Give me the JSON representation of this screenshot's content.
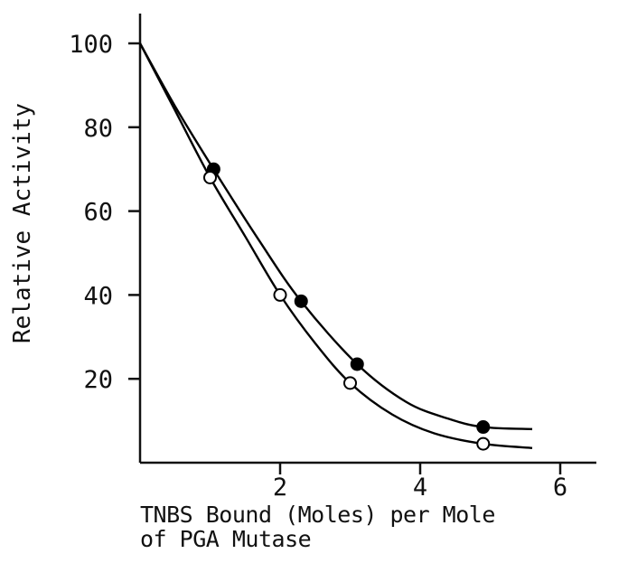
{
  "chart_data": {
    "type": "scatter",
    "xlabel_lines": [
      "TNBS Bound (Moles) per Mole",
      "of PGA Mutase"
    ],
    "ylabel": "Relative Activity",
    "xlim": [
      0,
      6.5
    ],
    "ylim": [
      0,
      105
    ],
    "xticks": [
      2,
      4,
      6
    ],
    "yticks": [
      20,
      40,
      60,
      80,
      100
    ],
    "grid": false,
    "legend": "none",
    "series": [
      {
        "marker": "filled-circle",
        "color": "#000000",
        "points": [
          [
            0,
            100
          ],
          [
            1.05,
            70
          ],
          [
            2.3,
            38.5
          ],
          [
            3.1,
            23.5
          ],
          [
            4.9,
            8.5
          ]
        ],
        "curve": [
          [
            0,
            100
          ],
          [
            0.5,
            85
          ],
          [
            1.05,
            70
          ],
          [
            1.7,
            53
          ],
          [
            2.3,
            38.5
          ],
          [
            3.1,
            23.5
          ],
          [
            3.8,
            14.5
          ],
          [
            4.4,
            10.5
          ],
          [
            4.9,
            8.5
          ],
          [
            5.6,
            8
          ]
        ]
      },
      {
        "marker": "open-circle",
        "color": "#000000",
        "points": [
          [
            0,
            100
          ],
          [
            1.0,
            68
          ],
          [
            2.0,
            40
          ],
          [
            3.0,
            19
          ],
          [
            4.9,
            4.5
          ]
        ],
        "curve": [
          [
            0,
            100
          ],
          [
            0.5,
            84
          ],
          [
            1.0,
            68
          ],
          [
            1.5,
            54
          ],
          [
            2.0,
            40
          ],
          [
            2.5,
            28.5
          ],
          [
            3.0,
            19
          ],
          [
            3.6,
            11.5
          ],
          [
            4.2,
            7
          ],
          [
            4.9,
            4.5
          ],
          [
            5.6,
            3.5
          ]
        ]
      }
    ]
  }
}
